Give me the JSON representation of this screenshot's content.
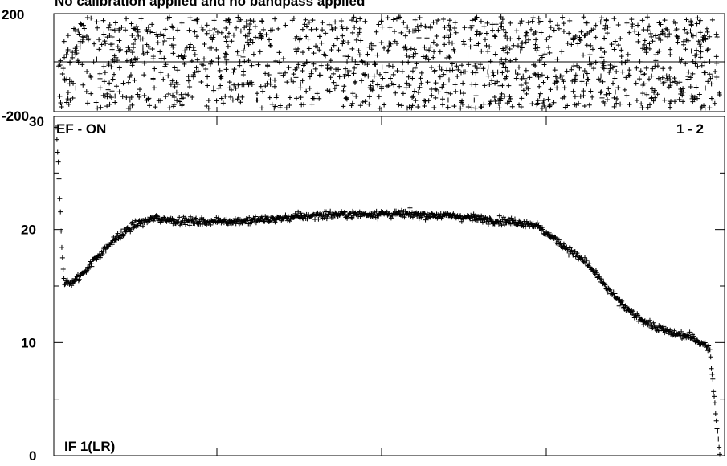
{
  "chart_data": [
    {
      "type": "scatter",
      "title": "No calibration applied and no bandpass applied",
      "ylim": [
        -200,
        200
      ],
      "yticks": [
        "200",
        "-200"
      ],
      "marker": "+",
      "color": "#000000",
      "points_description_values": {
        "x_range": [
          0,
          1
        ],
        "y_spread": [
          -200,
          200
        ],
        "count": 1400
      }
    },
    {
      "type": "scatter",
      "ylim": [
        0,
        30
      ],
      "yticks": [
        "30",
        "20",
        "10",
        "0"
      ],
      "marker": "+",
      "color": "#000000",
      "annotations": {
        "top_left": "EF - ON",
        "top_right": "1 - 2",
        "bottom_left": "IF 1(LR)"
      },
      "profile": {
        "x": [
          0.0,
          0.004,
          0.008,
          0.012,
          0.02,
          0.035,
          0.06,
          0.09,
          0.12,
          0.15,
          0.18,
          0.22,
          0.3,
          0.4,
          0.5,
          0.55,
          0.6,
          0.65,
          0.72,
          0.8,
          0.83,
          0.86,
          0.9,
          0.93,
          0.96,
          0.985,
          0.995,
          1.0
        ],
        "y": [
          29,
          25,
          19,
          15.3,
          15.2,
          15.8,
          17.5,
          19.2,
          20.5,
          21.0,
          20.8,
          20.7,
          20.8,
          21.3,
          21.4,
          21.3,
          21.2,
          20.9,
          20.5,
          17.0,
          14.8,
          12.9,
          11.4,
          10.8,
          10.4,
          9.5,
          3.0,
          0.3
        ]
      },
      "noise": 0.35
    }
  ]
}
